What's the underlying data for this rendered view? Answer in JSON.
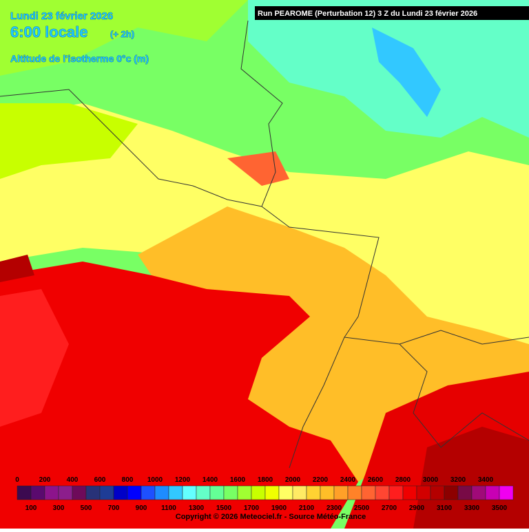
{
  "header": {
    "date": "Lundi 23 février 2026",
    "time": "6:00 locale",
    "offset": "(+ 2h)",
    "parameter": "Altitude de l'isotherme 0°c (m)",
    "run": "Run PEAROME (Perturbation 12) 3 Z du Lundi 23 février 2026"
  },
  "legend": {
    "colors": [
      "#3c0a50",
      "#5a0a6e",
      "#8c148c",
      "#8c1e8c",
      "#6e0a5a",
      "#283278",
      "#1e3c96",
      "#0000c8",
      "#0000ff",
      "#1e50ff",
      "#1e8cff",
      "#32c8ff",
      "#64ffff",
      "#64ffc8",
      "#64ff96",
      "#78ff64",
      "#a0ff32",
      "#c8ff00",
      "#f0ff00",
      "#ffff64",
      "#ffeb64",
      "#ffd232",
      "#ffbe28",
      "#ffa028",
      "#ff8228",
      "#ff6432",
      "#ff4632",
      "#ff1e1e",
      "#f00000",
      "#d20000",
      "#b40000",
      "#8c0000",
      "#780a46",
      "#a00a78",
      "#c800b4",
      "#f000f0"
    ],
    "labels_top": [
      "0",
      "200",
      "400",
      "600",
      "800",
      "1000",
      "1200",
      "1400",
      "1600",
      "1800",
      "2000",
      "2200",
      "2400",
      "2600",
      "2800",
      "3000",
      "3200",
      "3400"
    ],
    "labels_bottom": [
      "100",
      "300",
      "500",
      "700",
      "900",
      "1100",
      "1300",
      "1500",
      "1700",
      "1900",
      "2100",
      "2300",
      "2500",
      "2700",
      "2900",
      "3100",
      "3300",
      "3500"
    ]
  },
  "footer": {
    "copyright": "Copyright © 2026 Meteociel.fr - Source Météo-France"
  }
}
